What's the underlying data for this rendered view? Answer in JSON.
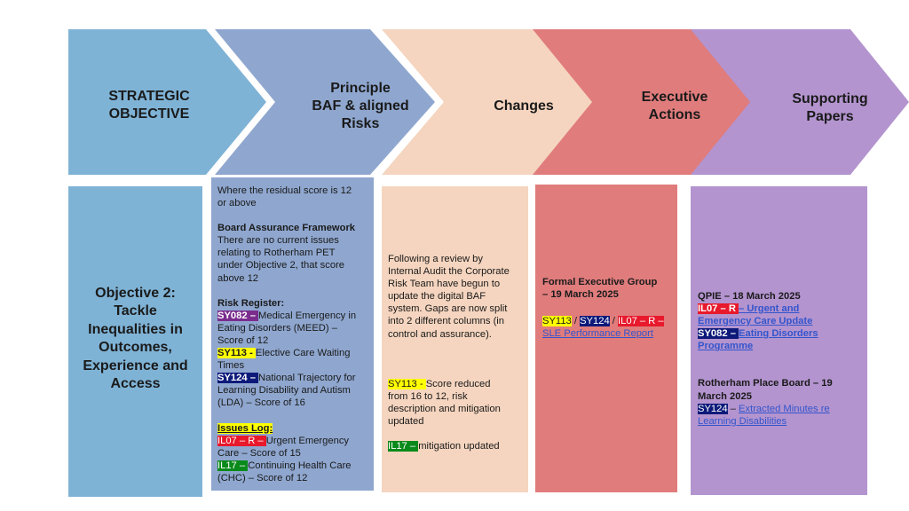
{
  "colors": {
    "col1": "#7fb3d6",
    "col2": "#8fa7cf",
    "col3": "#f5d5bf",
    "col4": "#e07c7c",
    "col5": "#b394cf"
  },
  "headers": {
    "strategic_objective": [
      "STRATEGIC",
      "OBJECTIVE"
    ],
    "principle_risks": [
      "Principle",
      "BAF & aligned",
      "Risks"
    ],
    "changes": "Changes",
    "executive_actions": [
      "Executive",
      "Actions"
    ],
    "supporting_papers": [
      "Supporting",
      "Papers"
    ]
  },
  "objective": {
    "lines": [
      "Objective 2:",
      "Tackle",
      "Inequalities in",
      "Outcomes,",
      "Experience and",
      "Access"
    ]
  },
  "risks": {
    "intro": [
      "Where the residual score is 12",
      "or above"
    ],
    "baf_heading": "Board Assurance Framework",
    "baf_text": [
      "There are no current issues",
      "relating to Rotherham PET",
      "under Objective 2, that score",
      "above 12"
    ],
    "register_heading": "Risk Register:",
    "sy082_tag": "SY082 – ",
    "sy082_text": [
      "Medical Emergency in",
      "Eating Disorders (MEED) –",
      "Score of 12"
    ],
    "sy113_tag": "SY113  - ",
    "sy113_text": [
      "Elective Care Waiting",
      "Times"
    ],
    "sy124_tag": "SY124 – ",
    "sy124_text": [
      "National Trajectory for",
      "Learning Disability and Autism",
      "(LDA) – Score of 16"
    ],
    "issues_heading": "Issues Log:",
    "il07_tag": "IL07 – R – ",
    "il07_text": [
      "Urgent Emergency",
      "Care – Score of 15"
    ],
    "il17_tag": "IL17 – ",
    "il17_text": [
      "Continuing Health Care",
      "(CHC) – Score of 12"
    ]
  },
  "changes": {
    "review_text": [
      "Following a review by",
      "Internal Audit the Corporate",
      "Risk Team have begun to",
      "update the digital BAF",
      "system. Gaps are now split",
      "into 2 different columns (in",
      "control and assurance)."
    ],
    "sy113_tag": "SY113  - ",
    "sy113_text": [
      "Score reduced",
      "from 16 to 12, risk",
      "description and mitigation",
      "updated"
    ],
    "il17_tag": "IL17 – ",
    "il17_text": "mitigation updated"
  },
  "executive": {
    "heading": [
      "Formal Executive Group",
      "– 19 March 2025"
    ],
    "tag_sy113": "SY113",
    "sep1": " / ",
    "tag_sy124": "SY124",
    "sep2": " / ",
    "tag_il07": "IL07 – R – ",
    "report_link": "SLE Performance Report"
  },
  "papers": {
    "qpie_heading": "QPIE – 18 March 2025",
    "il07_tag": "IL07 – R ",
    "il07_link": [
      "– Urgent and",
      "Emergency Care Update"
    ],
    "sy082_tag": "SY082 – ",
    "sy082_link": [
      "Eating Disorders",
      "Programme"
    ],
    "place_heading": [
      "Rotherham Place Board – 19",
      "March 2025"
    ],
    "sy124_tag": "SY124",
    "sy124_sep": " – ",
    "sy124_link": [
      "Extracted Minutes re",
      "Learning Disabilities"
    ]
  }
}
